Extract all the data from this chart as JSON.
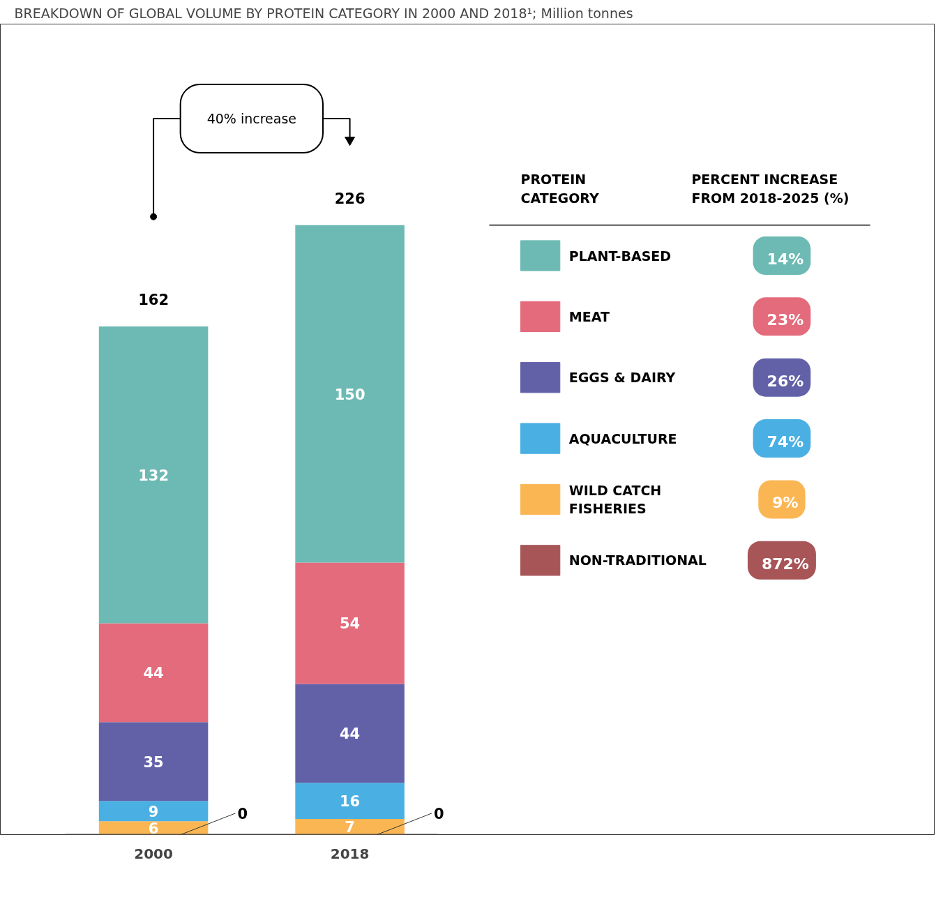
{
  "chart_data": {
    "type": "bar",
    "title": "BREAKDOWN OF GLOBAL VOLUME BY PROTEIN CATEGORY IN 2000 AND 2018¹; Million tonnes",
    "categories": [
      "2000",
      "2018"
    ],
    "stacked": true,
    "legend": "right",
    "legend_title": "PROTEIN CATEGORY",
    "series": [
      {
        "name": "NON-TRADITIONAL",
        "color": "#a85558",
        "values": [
          0,
          0
        ],
        "value_labels": [
          null,
          null
        ]
      },
      {
        "name": "WILD CATCH FISHERIES",
        "color": "#fbb654",
        "values": [
          6,
          7
        ],
        "value_labels": [
          "6",
          "7"
        ]
      },
      {
        "name": "AQUACULTURE",
        "color": "#4aafe3",
        "values": [
          9,
          16
        ],
        "value_labels": [
          "9",
          "16"
        ]
      },
      {
        "name": "EGGS & DAIRY",
        "color": "#6261a8",
        "values": [
          35,
          44
        ],
        "value_labels": [
          "35",
          "44"
        ]
      },
      {
        "name": "MEAT",
        "color": "#e46b7c",
        "values": [
          44,
          54
        ],
        "value_labels": [
          "44",
          "54"
        ]
      },
      {
        "name": "PLANT-BASED",
        "color": "#6cbab3",
        "values": [
          132,
          150
        ],
        "value_labels": [
          "132",
          "150"
        ]
      }
    ],
    "annotations": [
      "40% increase",
      "PERCENT INCREASE FROM 2018-2025 (%)",
      "872%",
      "9%",
      "74%",
      "26%",
      "23%",
      "14%",
      "162",
      "226",
      "0",
      "0"
    ]
  }
}
